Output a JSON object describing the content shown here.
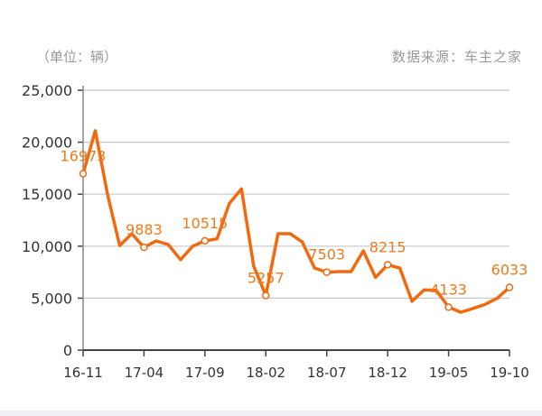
{
  "header": {
    "unit": "（单位：辆）",
    "source": "数据来源：车主之家"
  },
  "colors": {
    "line": "#f26a10",
    "grid": "#c8c8c8",
    "axis": "#444444",
    "label": "#f07a1e",
    "text": "#999999"
  },
  "chart_data": {
    "type": "line",
    "x": [
      "16-11",
      "16-12",
      "17-01",
      "17-02",
      "17-03",
      "17-04",
      "17-05",
      "17-06",
      "17-07",
      "17-08",
      "17-09",
      "17-10",
      "17-11",
      "17-12",
      "18-01",
      "18-02",
      "18-03",
      "18-04",
      "18-05",
      "18-06",
      "18-07",
      "18-08",
      "18-09",
      "18-10",
      "18-11",
      "18-12",
      "19-01",
      "19-02",
      "19-03",
      "19-04",
      "19-05",
      "19-06",
      "19-07",
      "19-08",
      "19-09",
      "19-10"
    ],
    "xticks": [
      "16-11",
      "17-04",
      "17-09",
      "18-02",
      "18-07",
      "18-12",
      "19-05",
      "19-10"
    ],
    "values": [
      16973,
      21100,
      15000,
      10050,
      11200,
      9883,
      10500,
      10150,
      8700,
      10000,
      10515,
      10700,
      14100,
      15500,
      8100,
      5257,
      11200,
      11200,
      10400,
      7900,
      7503,
      7550,
      7550,
      9550,
      7000,
      8215,
      7900,
      4700,
      5800,
      5750,
      4133,
      3650,
      4000,
      4400,
      5000,
      6033
    ],
    "data_labels": [
      {
        "x": "16-11",
        "text": "16973"
      },
      {
        "x": "17-04",
        "text": "9883"
      },
      {
        "x": "17-09",
        "text": "10515"
      },
      {
        "x": "18-02",
        "text": "5257"
      },
      {
        "x": "18-07",
        "text": "7503"
      },
      {
        "x": "18-12",
        "text": "8215"
      },
      {
        "x": "19-05",
        "text": "4133"
      },
      {
        "x": "19-10",
        "text": "6033"
      }
    ],
    "yticks": [
      "0",
      "5,000",
      "10,000",
      "15,000",
      "20,000",
      "25,000"
    ],
    "ylim": [
      0,
      25000
    ],
    "grid": true,
    "xlabel": "",
    "ylabel": "",
    "title": ""
  }
}
